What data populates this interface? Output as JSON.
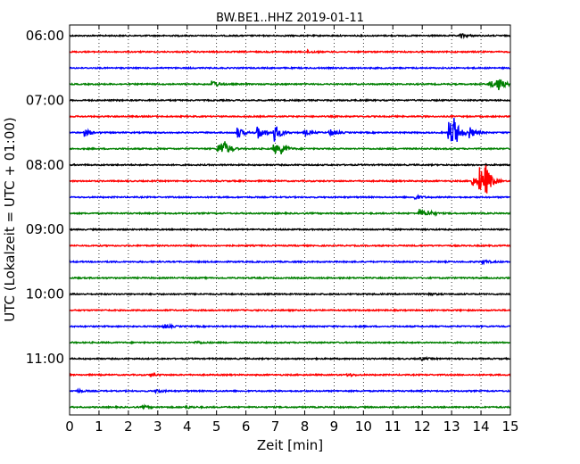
{
  "chart_data": {
    "type": "line",
    "title": "BW.BE1..HHZ 2019-01-11",
    "xlabel": "Zeit  [min]",
    "ylabel": "UTC (Lokalzeit = UTC + 01:00)",
    "xlim": [
      0,
      15
    ],
    "x_ticks": [
      "0",
      "1",
      "2",
      "3",
      "4",
      "5",
      "6",
      "7",
      "8",
      "9",
      "10",
      "11",
      "12",
      "13",
      "14",
      "15"
    ],
    "y_ticks": [
      "06:00",
      "07:00",
      "08:00",
      "09:00",
      "10:00",
      "11:00"
    ],
    "ylim_start": "06:00",
    "trace_interval_min": 15,
    "grid": "vertical dotted",
    "colors": [
      "#000000",
      "#ff0000",
      "#0000ff",
      "#008000"
    ],
    "traces": [
      {
        "time": "06:00",
        "events": [
          [
            13.3,
            0.3
          ]
        ]
      },
      {
        "time": "06:15",
        "events": [
          [
            8.1,
            0.2
          ]
        ]
      },
      {
        "time": "06:30",
        "events": []
      },
      {
        "time": "06:45",
        "events": [
          [
            4.85,
            0.6
          ],
          [
            14.55,
            1.0
          ],
          [
            14.3,
            0.5
          ]
        ]
      },
      {
        "time": "07:00",
        "events": []
      },
      {
        "time": "07:15",
        "events": []
      },
      {
        "time": "07:30",
        "events": [
          [
            0.5,
            0.5
          ],
          [
            5.7,
            0.8
          ],
          [
            6.4,
            1.1
          ],
          [
            6.95,
            1.4
          ],
          [
            8.0,
            0.4
          ],
          [
            8.85,
            0.6
          ],
          [
            12.9,
            1.9
          ],
          [
            13.05,
            1.8
          ],
          [
            13.6,
            0.8
          ]
        ]
      },
      {
        "time": "07:45",
        "events": [
          [
            5.05,
            0.8
          ],
          [
            5.2,
            1.2
          ],
          [
            6.95,
            0.8
          ],
          [
            7.2,
            0.5
          ]
        ]
      },
      {
        "time": "08:00",
        "events": []
      },
      {
        "time": "08:15",
        "events": [
          [
            13.95,
            2.0
          ],
          [
            14.15,
            1.7
          ],
          [
            13.7,
            0.8
          ]
        ]
      },
      {
        "time": "08:30",
        "events": [
          [
            11.75,
            0.3
          ]
        ]
      },
      {
        "time": "08:45",
        "events": [
          [
            11.9,
            0.6
          ],
          [
            12.2,
            0.3
          ]
        ]
      },
      {
        "time": "09:00",
        "events": []
      },
      {
        "time": "09:15",
        "events": []
      },
      {
        "time": "09:30",
        "events": [
          [
            14.05,
            0.3
          ]
        ]
      },
      {
        "time": "09:45",
        "events": []
      },
      {
        "time": "10:00",
        "events": [
          [
            12.2,
            0.2
          ]
        ]
      },
      {
        "time": "10:15",
        "events": []
      },
      {
        "time": "10:30",
        "events": [
          [
            3.2,
            0.3
          ]
        ]
      },
      {
        "time": "10:45",
        "events": [
          [
            4.3,
            0.2
          ]
        ]
      },
      {
        "time": "11:00",
        "events": [
          [
            11.95,
            0.2
          ]
        ]
      },
      {
        "time": "11:15",
        "events": [
          [
            2.75,
            0.2
          ],
          [
            9.45,
            0.2
          ]
        ]
      },
      {
        "time": "11:30",
        "events": [
          [
            0.25,
            0.2
          ],
          [
            2.95,
            0.2
          ]
        ]
      },
      {
        "time": "11:45",
        "events": [
          [
            2.5,
            0.2
          ],
          [
            3.95,
            0.2
          ]
        ]
      }
    ]
  }
}
